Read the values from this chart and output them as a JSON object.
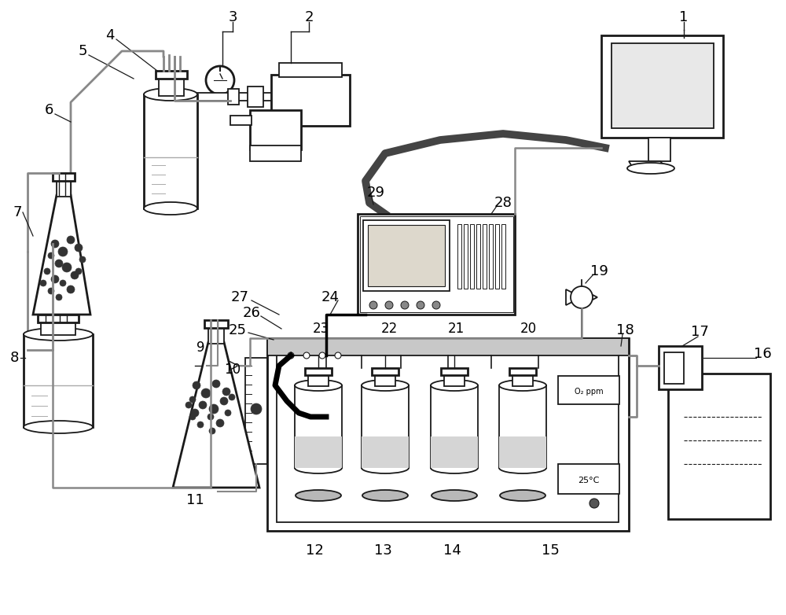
{
  "bg_color": "#ffffff",
  "lc": "#1a1a1a",
  "gc": "#888888",
  "lgc": "#aaaaaa",
  "dark": "#333333",
  "fig_width": 10.0,
  "fig_height": 7.82
}
